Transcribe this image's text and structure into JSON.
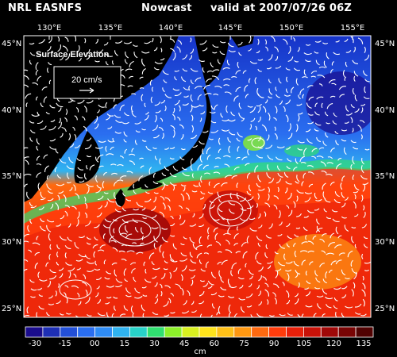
{
  "header": {
    "source": "NRL EASNFS",
    "product": "Nowcast",
    "valid": "valid at 2007/07/26 06Z"
  },
  "map": {
    "lon_ticks": [
      "130°E",
      "135°E",
      "140°E",
      "145°E",
      "150°E",
      "155°E"
    ],
    "lat_ticks": [
      "45°N",
      "40°N",
      "35°N",
      "30°N",
      "25°N"
    ],
    "field_label": "Surface Elevation",
    "scale_label": "20 cm/s",
    "colors": {
      "background": "#000000",
      "land": "#000000",
      "vectors": "#ffffff"
    }
  },
  "colorbar": {
    "tick_labels": [
      "-30",
      "-15",
      "00",
      "15",
      "30",
      "45",
      "60",
      "75",
      "90",
      "105",
      "120",
      "135"
    ],
    "unit": "cm",
    "colors": [
      "#1a0c8c",
      "#1e2fb4",
      "#2350d8",
      "#2a6ef0",
      "#2f8cf5",
      "#30b3f0",
      "#28d2c8",
      "#30e070",
      "#8cf02a",
      "#d8f020",
      "#ffe41c",
      "#ffc018",
      "#ff9812",
      "#ff6a10",
      "#ff3c0c",
      "#e8200a",
      "#c81208",
      "#a00808",
      "#780404",
      "#500202"
    ]
  }
}
